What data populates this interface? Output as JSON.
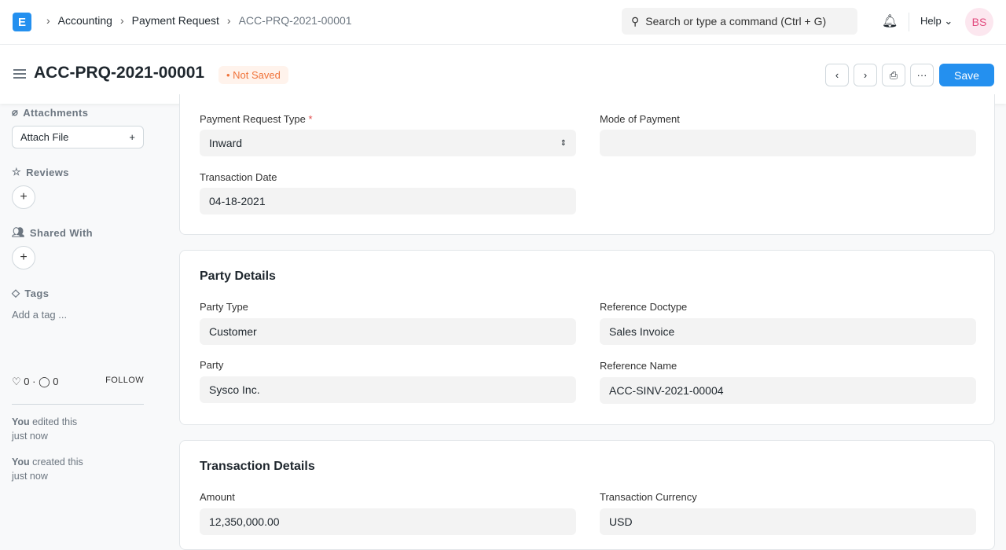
{
  "topbar": {
    "logo": "E",
    "breadcrumbs": [
      "Accounting",
      "Payment Request",
      "ACC-PRQ-2021-00001"
    ],
    "search_placeholder": "Search or type a command (Ctrl + G)",
    "help": "Help",
    "avatar": "BS"
  },
  "header": {
    "title": "ACC-PRQ-2021-00001",
    "status": "Not Saved",
    "save": "Save",
    "more": "···"
  },
  "sidebar": {
    "attachments": "Attachments",
    "attach_file": "Attach File",
    "reviews": "Reviews",
    "shared_with": "Shared With",
    "tags": "Tags",
    "add_tag": "Add a tag ...",
    "likes": "0",
    "comments": "0",
    "follow": "FOLLOW",
    "activity": [
      {
        "who": "You",
        "what": "edited this",
        "when": "just now"
      },
      {
        "who": "You",
        "what": "created this",
        "when": "just now"
      }
    ]
  },
  "form": {
    "payment_request_type": {
      "label": "Payment Request Type",
      "value": "Inward"
    },
    "mode_of_payment": {
      "label": "Mode of Payment",
      "value": ""
    },
    "transaction_date": {
      "label": "Transaction Date",
      "value": "04-18-2021"
    },
    "party_details": "Party Details",
    "party_type": {
      "label": "Party Type",
      "value": "Customer"
    },
    "reference_doctype": {
      "label": "Reference Doctype",
      "value": "Sales Invoice"
    },
    "party": {
      "label": "Party",
      "value": "Sysco Inc."
    },
    "reference_name": {
      "label": "Reference Name",
      "value": "ACC-SINV-2021-00004"
    },
    "transaction_details": "Transaction Details",
    "amount": {
      "label": "Amount",
      "value": "12,350,000.00"
    },
    "transaction_currency": {
      "label": "Transaction Currency",
      "value": "USD"
    }
  },
  "colors": {
    "primary": "#2490ef",
    "status": "#f0733a"
  }
}
